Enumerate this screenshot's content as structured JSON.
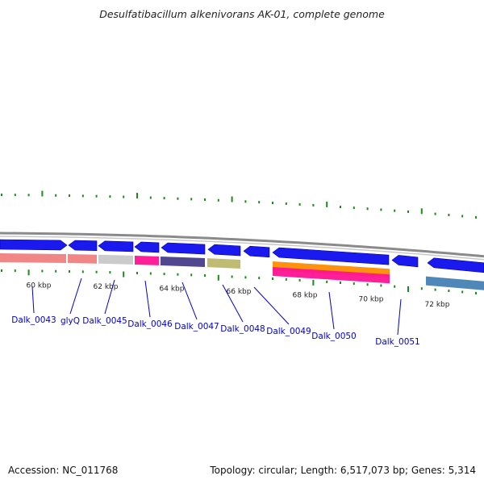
{
  "title": "Desulfatibacillum alkenivorans AK-01, complete genome",
  "footer": {
    "accession": "Accession: NC_011768",
    "topology": "Topology: circular; Length: 6,517,073 bp; Genes: 5,314"
  },
  "colors": {
    "backbone": "#8a8a8a",
    "gene_forward": "#1a1aee",
    "tick_green": "#1a8a1a",
    "label_blue": "#0000cc"
  },
  "kbp_labels": [
    "60 kbp",
    "62 kbp",
    "64 kbp",
    "66 kbp",
    "68 kbp",
    "70 kbp",
    "72 kbp"
  ],
  "feature_colors": [
    "#f08080",
    "#f08080",
    "#c8c8c8",
    "#ff1493",
    "#483d8b",
    "#bdb76b",
    "#ff8c00",
    "#ff1493",
    "#4682b4"
  ],
  "gene_labels": [
    "Dalk_0043",
    "glyQ",
    "Dalk_0045",
    "Dalk_0046",
    "Dalk_0047",
    "Dalk_0048",
    "Dalk_0049",
    "Dalk_0050",
    "Dalk_0051"
  ]
}
